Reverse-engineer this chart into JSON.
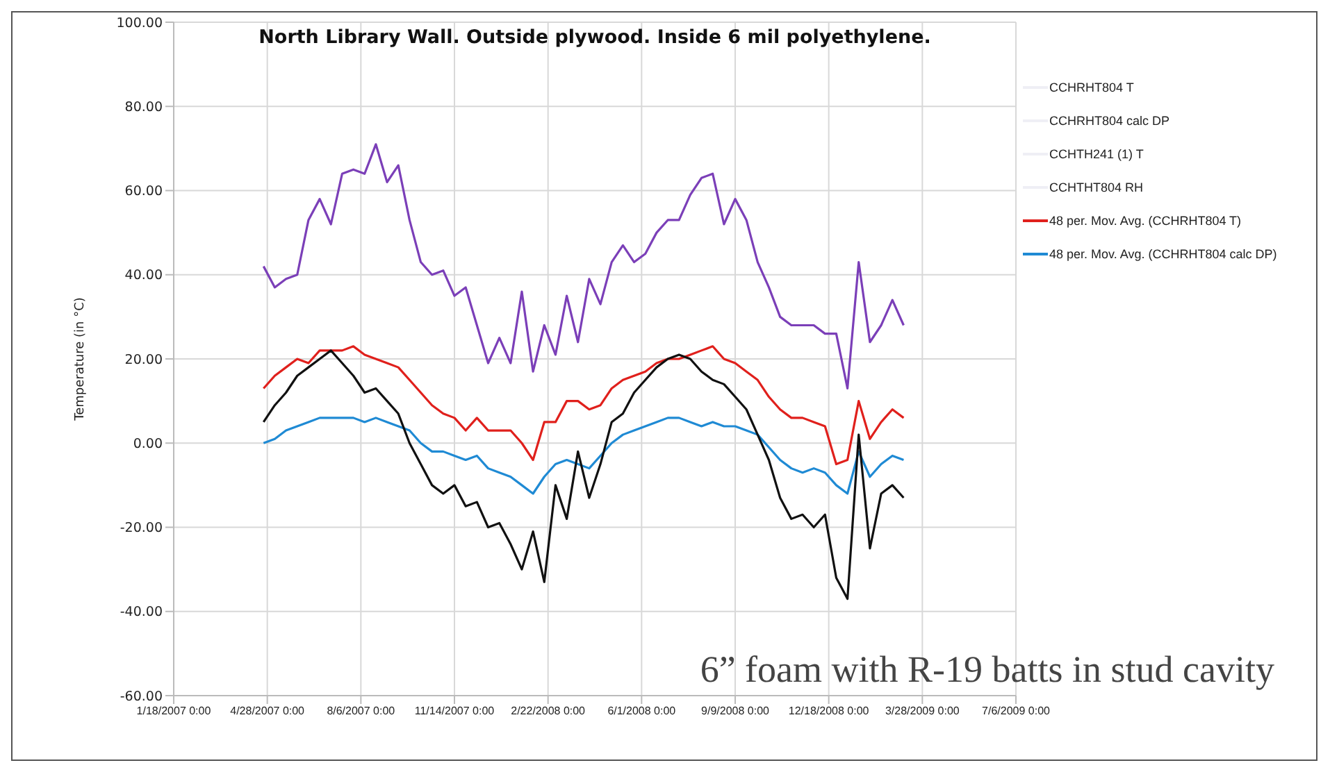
{
  "chart_data": {
    "type": "line",
    "title": "North Library Wall. Outside plywood. Inside 6 mil polyethylene.",
    "ylabel": "Temperature (in °C)",
    "annotations": [
      "6” foam with R-19 batts in stud cavity"
    ],
    "xlim": [
      "2007-01-18",
      "2009-07-06"
    ],
    "xticks": [
      {
        "value": "2007-01-18",
        "label": "1/18/2007 0:00"
      },
      {
        "value": "2007-04-28",
        "label": "4/28/2007 0:00"
      },
      {
        "value": "2007-08-06",
        "label": "8/6/2007 0:00"
      },
      {
        "value": "2007-11-14",
        "label": "11/14/2007 0:00"
      },
      {
        "value": "2008-02-22",
        "label": "2/22/2008 0:00"
      },
      {
        "value": "2008-06-01",
        "label": "6/1/2008 0:00"
      },
      {
        "value": "2008-09-09",
        "label": "9/9/2008 0:00"
      },
      {
        "value": "2008-12-18",
        "label": "12/18/2008 0:00"
      },
      {
        "value": "2009-03-28",
        "label": "3/28/2009 0:00"
      },
      {
        "value": "2009-07-06",
        "label": "7/6/2009 0:00"
      }
    ],
    "ylim": [
      -60,
      100
    ],
    "yticks": [
      {
        "value": -60,
        "label": "-60.00"
      },
      {
        "value": -40,
        "label": "-40.00"
      },
      {
        "value": -20,
        "label": "-20.00"
      },
      {
        "value": 0,
        "label": "0.00"
      },
      {
        "value": 20,
        "label": "20.00"
      },
      {
        "value": 40,
        "label": "40.00"
      },
      {
        "value": 60,
        "label": "60.00"
      },
      {
        "value": 80,
        "label": "80.00"
      },
      {
        "value": 100,
        "label": "100.00"
      }
    ],
    "grid": true,
    "legend": "right",
    "marker": "none",
    "line_style": "solid",
    "x": [
      "2007-04-24",
      "2007-05-06",
      "2007-05-18",
      "2007-05-30",
      "2007-06-11",
      "2007-06-23",
      "2007-07-05",
      "2007-07-17",
      "2007-07-29",
      "2007-08-10",
      "2007-08-22",
      "2007-09-03",
      "2007-09-15",
      "2007-09-27",
      "2007-10-09",
      "2007-10-21",
      "2007-11-02",
      "2007-11-14",
      "2007-11-26",
      "2007-12-08",
      "2007-12-20",
      "2008-01-01",
      "2008-01-13",
      "2008-01-25",
      "2008-02-06",
      "2008-02-18",
      "2008-03-01",
      "2008-03-13",
      "2008-03-25",
      "2008-04-06",
      "2008-04-18",
      "2008-04-30",
      "2008-05-12",
      "2008-05-24",
      "2008-06-05",
      "2008-06-17",
      "2008-06-29",
      "2008-07-11",
      "2008-07-23",
      "2008-08-04",
      "2008-08-16",
      "2008-08-28",
      "2008-09-09",
      "2008-09-21",
      "2008-10-03",
      "2008-10-15",
      "2008-10-27",
      "2008-11-08",
      "2008-11-20",
      "2008-12-02",
      "2008-12-14",
      "2008-12-26",
      "2009-01-07",
      "2009-01-19",
      "2009-01-31",
      "2009-02-12",
      "2009-02-24",
      "2009-03-08"
    ],
    "series": [
      {
        "name": "CCHRHT804 T",
        "color": "#efeff5",
        "values": [
          null,
          null,
          null,
          null,
          null,
          null,
          null,
          null,
          null,
          null,
          null,
          null,
          null,
          null,
          null,
          null,
          null,
          null,
          null,
          null,
          null,
          null,
          null,
          null,
          null,
          null,
          null,
          null,
          null,
          null,
          null,
          null,
          null,
          null,
          null,
          null,
          null,
          null,
          null,
          null,
          null,
          null,
          null,
          null,
          null,
          null,
          null,
          null,
          null,
          null,
          null,
          null,
          null,
          null,
          null,
          null,
          null,
          null
        ]
      },
      {
        "name": "CCHRHT804 calc DP",
        "color": "#efeff5",
        "values": [
          null,
          null,
          null,
          null,
          null,
          null,
          null,
          null,
          null,
          null,
          null,
          null,
          null,
          null,
          null,
          null,
          null,
          null,
          null,
          null,
          null,
          null,
          null,
          null,
          null,
          null,
          null,
          null,
          null,
          null,
          null,
          null,
          null,
          null,
          null,
          null,
          null,
          null,
          null,
          null,
          null,
          null,
          null,
          null,
          null,
          null,
          null,
          null,
          null,
          null,
          null,
          null,
          null,
          null,
          null,
          null,
          null,
          null
        ]
      },
      {
        "name": "CCHTH241 (1) T",
        "color": "#efeff5",
        "values": [
          null,
          null,
          null,
          null,
          null,
          null,
          null,
          null,
          null,
          null,
          null,
          null,
          null,
          null,
          null,
          null,
          null,
          null,
          null,
          null,
          null,
          null,
          null,
          null,
          null,
          null,
          null,
          null,
          null,
          null,
          null,
          null,
          null,
          null,
          null,
          null,
          null,
          null,
          null,
          null,
          null,
          null,
          null,
          null,
          null,
          null,
          null,
          null,
          null,
          null,
          null,
          null,
          null,
          null,
          null,
          null,
          null,
          null
        ]
      },
      {
        "name": "CCHTHT804 RH",
        "color": "#efeff5",
        "values": [
          null,
          null,
          null,
          null,
          null,
          null,
          null,
          null,
          null,
          null,
          null,
          null,
          null,
          null,
          null,
          null,
          null,
          null,
          null,
          null,
          null,
          null,
          null,
          null,
          null,
          null,
          null,
          null,
          null,
          null,
          null,
          null,
          null,
          null,
          null,
          null,
          null,
          null,
          null,
          null,
          null,
          null,
          null,
          null,
          null,
          null,
          null,
          null,
          null,
          null,
          null,
          null,
          null,
          null,
          null,
          null,
          null,
          null
        ]
      },
      {
        "name": "48 per. Mov. Avg. (CCHRHT804 T)",
        "color": "#e0201c",
        "values": [
          13,
          16,
          18,
          20,
          19,
          22,
          22,
          22,
          23,
          21,
          20,
          19,
          18,
          15,
          12,
          9,
          7,
          6,
          3,
          6,
          3,
          3,
          3,
          0,
          -4,
          5,
          5,
          10,
          10,
          8,
          9,
          13,
          15,
          16,
          17,
          19,
          20,
          20,
          21,
          22,
          23,
          20,
          19,
          17,
          15,
          11,
          8,
          6,
          6,
          5,
          4,
          -5,
          -4,
          10,
          1,
          5,
          8,
          6
        ]
      },
      {
        "name": "48 per. Mov. Avg. (CCHRHT804 calc DP)",
        "color": "#1f8ad4",
        "values": [
          0,
          1,
          3,
          4,
          5,
          6,
          6,
          6,
          6,
          5,
          6,
          5,
          4,
          3,
          0,
          -2,
          -2,
          -3,
          -4,
          -3,
          -6,
          -7,
          -8,
          -10,
          -12,
          -8,
          -5,
          -4,
          -5,
          -6,
          -3,
          0,
          2,
          3,
          4,
          5,
          6,
          6,
          5,
          4,
          5,
          4,
          4,
          3,
          2,
          -1,
          -4,
          -6,
          -7,
          -6,
          -7,
          -10,
          -12,
          -2,
          -8,
          -5,
          -3,
          -4
        ]
      },
      {
        "color": "#7b3fb8",
        "values": [
          42,
          37,
          39,
          40,
          53,
          58,
          52,
          64,
          65,
          64,
          71,
          62,
          66,
          53,
          43,
          40,
          41,
          35,
          37,
          28,
          19,
          25,
          19,
          36,
          17,
          28,
          21,
          35,
          24,
          39,
          33,
          43,
          47,
          43,
          45,
          50,
          53,
          53,
          59,
          63,
          64,
          52,
          58,
          53,
          43,
          37,
          30,
          28,
          28,
          28,
          26,
          26,
          13,
          43,
          24,
          28,
          34,
          28
        ]
      },
      {
        "color": "#111111",
        "values": [
          5,
          9,
          12,
          16,
          18,
          20,
          22,
          19,
          16,
          12,
          13,
          10,
          7,
          0,
          -5,
          -10,
          -12,
          -10,
          -15,
          -14,
          -20,
          -19,
          -24,
          -30,
          -21,
          -33,
          -10,
          -18,
          -2,
          -13,
          -5,
          5,
          7,
          12,
          15,
          18,
          20,
          21,
          20,
          17,
          15,
          14,
          11,
          8,
          2,
          -4,
          -13,
          -18,
          -17,
          -20,
          -17,
          -32,
          -37,
          2,
          -25,
          -12,
          -10,
          -13
        ]
      }
    ]
  }
}
